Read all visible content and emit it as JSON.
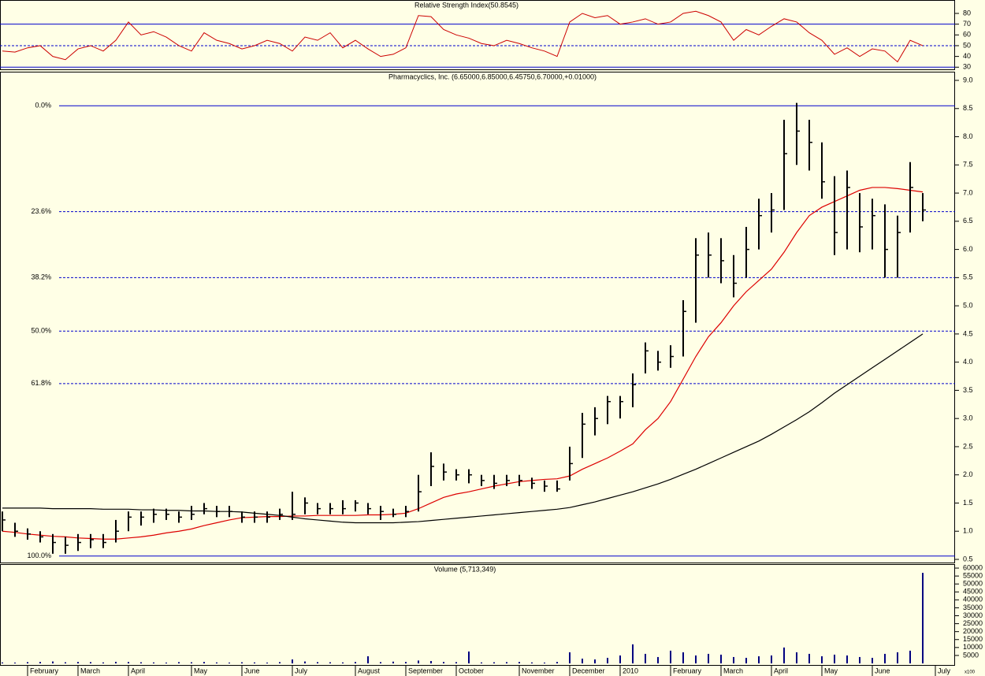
{
  "chart_data": [
    {
      "type": "line",
      "title": "Relative Strength Index(50.8545)",
      "color": "#cc0000",
      "ylim": [
        28,
        91
      ],
      "yticks": [
        30,
        40,
        50,
        60,
        70,
        80
      ],
      "levels": [
        70,
        50,
        30
      ],
      "level_dashed": [
        false,
        true,
        false
      ],
      "level_color": "#0000cc",
      "values": [
        45,
        44,
        48,
        50,
        40,
        37,
        47,
        50,
        45,
        55,
        72,
        60,
        63,
        58,
        50,
        45,
        62,
        55,
        52,
        47,
        50,
        55,
        52,
        45,
        58,
        55,
        62,
        48,
        55,
        47,
        40,
        42,
        48,
        78,
        77,
        65,
        60,
        57,
        52,
        50,
        55,
        52,
        48,
        45,
        40,
        72,
        80,
        76,
        78,
        70,
        72,
        75,
        70,
        72,
        80,
        82,
        78,
        72,
        55,
        65,
        60,
        68,
        75,
        72,
        62,
        55,
        42,
        48,
        40,
        47,
        45,
        35,
        55,
        50,
        null
      ]
    },
    {
      "type": "ohlc",
      "title": "Pharmacyclics, Inc. (6.65000,6.85000,6.45750,6.70000,+0.01000)",
      "color": "#000000",
      "ylim": [
        0.43,
        9.14
      ],
      "yticks": [
        0.5,
        {
          "value": 1,
          "label": "1.0"
        },
        1.5,
        {
          "value": 2,
          "label": "2.0"
        },
        2.5,
        {
          "value": 3,
          "label": "3.0"
        },
        3.5,
        {
          "value": 4,
          "label": "4.0"
        },
        4.5,
        {
          "value": 5,
          "label": "5.0"
        },
        5.5,
        {
          "value": 6,
          "label": "6.0"
        },
        6.5,
        {
          "value": 7,
          "label": "7.0"
        },
        7.5,
        {
          "value": 8,
          "label": "8.0"
        },
        8.5,
        {
          "value": 9,
          "label": "9.0"
        }
      ],
      "high": [
        1.35,
        1.15,
        1.05,
        1.0,
        0.95,
        0.9,
        0.95,
        0.95,
        0.95,
        1.2,
        1.35,
        1.35,
        1.4,
        1.4,
        1.35,
        1.45,
        1.5,
        1.45,
        1.45,
        1.35,
        1.35,
        1.35,
        1.4,
        1.7,
        1.6,
        1.5,
        1.5,
        1.55,
        1.55,
        1.5,
        1.45,
        1.4,
        1.45,
        2.0,
        2.4,
        2.2,
        2.1,
        2.1,
        2.0,
        2.0,
        2.0,
        2.0,
        1.95,
        1.9,
        1.9,
        2.5,
        3.1,
        3.2,
        3.4,
        3.4,
        3.8,
        4.35,
        4.2,
        4.3,
        5.1,
        6.2,
        6.3,
        6.2,
        5.9,
        6.4,
        6.9,
        7.0,
        8.3,
        8.6,
        8.3,
        7.9,
        7.3,
        7.4,
        7.0,
        6.9,
        6.8,
        6.6,
        7.55,
        7.0,
        null
      ],
      "low": [
        1.0,
        0.9,
        0.85,
        0.8,
        0.6,
        0.6,
        0.65,
        0.7,
        0.7,
        0.8,
        1.0,
        1.1,
        1.15,
        1.2,
        1.15,
        1.2,
        1.3,
        1.25,
        1.25,
        1.15,
        1.15,
        1.15,
        1.2,
        1.2,
        1.3,
        1.3,
        1.3,
        1.3,
        1.35,
        1.3,
        1.2,
        1.25,
        1.25,
        1.35,
        1.8,
        1.9,
        1.9,
        1.85,
        1.8,
        1.75,
        1.8,
        1.8,
        1.75,
        1.7,
        1.7,
        1.9,
        2.3,
        2.7,
        2.9,
        3.0,
        3.2,
        3.8,
        3.85,
        3.9,
        4.1,
        4.7,
        5.5,
        5.4,
        5.15,
        5.5,
        6.0,
        6.3,
        6.7,
        7.5,
        7.4,
        6.9,
        5.9,
        6.0,
        5.95,
        6.0,
        5.5,
        5.5,
        6.3,
        6.5,
        null
      ],
      "close": [
        1.2,
        1.0,
        0.95,
        0.9,
        0.8,
        0.75,
        0.8,
        0.85,
        0.8,
        1.0,
        1.25,
        1.25,
        1.3,
        1.3,
        1.25,
        1.3,
        1.4,
        1.35,
        1.35,
        1.25,
        1.25,
        1.25,
        1.3,
        1.3,
        1.5,
        1.4,
        1.4,
        1.4,
        1.5,
        1.4,
        1.35,
        1.3,
        1.35,
        1.7,
        2.15,
        2.05,
        2.0,
        2.0,
        1.9,
        1.85,
        1.9,
        1.9,
        1.85,
        1.8,
        1.75,
        2.2,
        2.9,
        3.0,
        3.3,
        3.3,
        3.6,
        4.2,
        4.0,
        4.1,
        4.9,
        5.9,
        5.9,
        5.8,
        5.4,
        6.0,
        6.6,
        6.7,
        7.7,
        8.1,
        7.9,
        7.2,
        6.3,
        7.1,
        6.4,
        6.6,
        6.0,
        6.3,
        7.1,
        6.7,
        null
      ],
      "ma_lines": [
        {
          "color": "#dd0000",
          "values": [
            1.0,
            0.98,
            0.95,
            0.93,
            0.91,
            0.9,
            0.88,
            0.87,
            0.86,
            0.86,
            0.88,
            0.9,
            0.93,
            0.97,
            1.0,
            1.04,
            1.1,
            1.15,
            1.2,
            1.24,
            1.25,
            1.26,
            1.26,
            1.27,
            1.27,
            1.28,
            1.28,
            1.28,
            1.28,
            1.29,
            1.29,
            1.3,
            1.32,
            1.4,
            1.5,
            1.6,
            1.66,
            1.7,
            1.75,
            1.8,
            1.84,
            1.88,
            1.9,
            1.92,
            1.93,
            1.98,
            2.1,
            2.2,
            2.3,
            2.42,
            2.55,
            2.8,
            3.0,
            3.3,
            3.7,
            4.1,
            4.45,
            4.7,
            5.0,
            5.25,
            5.45,
            5.65,
            5.95,
            6.3,
            6.6,
            6.75,
            6.85,
            6.95,
            7.05,
            7.1,
            7.1,
            7.08,
            7.05,
            7.02,
            null
          ]
        },
        {
          "color": "#000000",
          "values": [
            1.41,
            1.41,
            1.41,
            1.41,
            1.4,
            1.4,
            1.4,
            1.4,
            1.39,
            1.39,
            1.39,
            1.38,
            1.38,
            1.37,
            1.37,
            1.36,
            1.36,
            1.35,
            1.35,
            1.34,
            1.32,
            1.3,
            1.28,
            1.25,
            1.22,
            1.2,
            1.18,
            1.16,
            1.15,
            1.15,
            1.15,
            1.15,
            1.16,
            1.17,
            1.19,
            1.21,
            1.23,
            1.25,
            1.27,
            1.29,
            1.31,
            1.33,
            1.35,
            1.37,
            1.39,
            1.42,
            1.47,
            1.52,
            1.58,
            1.64,
            1.7,
            1.77,
            1.84,
            1.92,
            2.01,
            2.1,
            2.2,
            2.3,
            2.4,
            2.5,
            2.6,
            2.72,
            2.85,
            2.98,
            3.12,
            3.28,
            3.45,
            3.6,
            3.75,
            3.9,
            4.05,
            4.2,
            4.35,
            4.5,
            null
          ]
        }
      ],
      "fib_color": "#0000cc",
      "fib_levels": [
        {
          "label": "0.0%",
          "value": 8.55,
          "dashed": false
        },
        {
          "label": "23.6%",
          "value": 6.67,
          "dashed": true
        },
        {
          "label": "38.2%",
          "value": 5.5,
          "dashed": true
        },
        {
          "label": "50.0%",
          "value": 4.55,
          "dashed": true
        },
        {
          "label": "61.8%",
          "value": 3.62,
          "dashed": true
        },
        {
          "label": "100.0%",
          "value": 0.56,
          "dashed": false
        }
      ]
    },
    {
      "type": "bar",
      "title": "Volume (5,713,349)",
      "color": "#000080",
      "unit_label": "x100",
      "ylim": [
        0,
        62000
      ],
      "yticks": [
        5000,
        10000,
        15000,
        20000,
        25000,
        30000,
        35000,
        40000,
        45000,
        50000,
        55000,
        60000
      ],
      "categories": [
        null,
        null,
        "February",
        null,
        null,
        null,
        "March",
        null,
        null,
        null,
        "April",
        null,
        null,
        null,
        null,
        "May",
        null,
        null,
        null,
        "June",
        null,
        null,
        null,
        "July",
        null,
        null,
        null,
        null,
        "August",
        null,
        null,
        null,
        "September",
        null,
        null,
        null,
        "October",
        null,
        null,
        null,
        null,
        "November",
        null,
        null,
        null,
        "December",
        null,
        null,
        null,
        "2010",
        null,
        null,
        null,
        "February",
        null,
        null,
        null,
        "March",
        null,
        null,
        null,
        "April",
        null,
        null,
        null,
        "May",
        null,
        null,
        null,
        "June",
        null,
        null,
        null,
        null,
        "July"
      ],
      "values": [
        600,
        500,
        800,
        900,
        1200,
        700,
        900,
        800,
        600,
        1000,
        900,
        700,
        600,
        500,
        800,
        700,
        900,
        600,
        500,
        700,
        600,
        500,
        800,
        2500,
        1200,
        800,
        700,
        600,
        900,
        4500,
        800,
        1100,
        900,
        1800,
        1500,
        900,
        800,
        7500,
        600,
        700,
        800,
        900,
        600,
        500,
        900,
        7000,
        3000,
        2500,
        3500,
        5000,
        12000,
        6000,
        4000,
        8000,
        7000,
        5000,
        6000,
        5500,
        4000,
        3500,
        4500,
        5000,
        10000,
        7000,
        6000,
        4500,
        5500,
        5000,
        4000,
        3500,
        6000,
        7000,
        8000,
        57000,
        null
      ]
    }
  ]
}
